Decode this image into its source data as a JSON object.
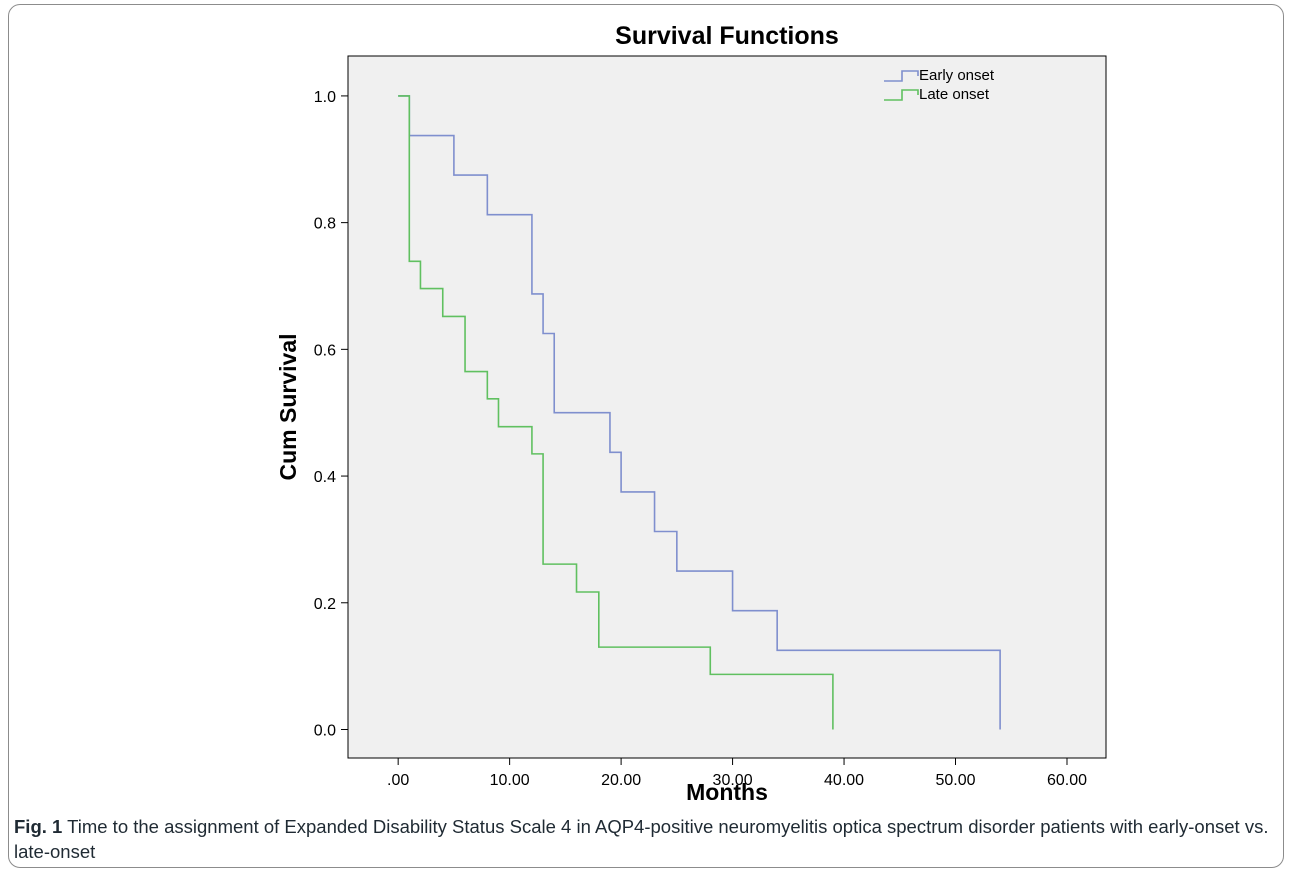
{
  "chart_data": {
    "type": "line",
    "title": "Survival Functions",
    "xlabel": "Months",
    "ylabel": "Cum Survival",
    "xlim": [
      -4.5,
      63.5
    ],
    "ylim": [
      -0.045,
      1.063
    ],
    "x_ticks": [
      0,
      10,
      20,
      30,
      40,
      50,
      60
    ],
    "x_tick_labels": [
      ".00",
      "10.00",
      "20.00",
      "30.00",
      "40.00",
      "50.00",
      "60.00"
    ],
    "y_ticks": [
      0,
      0.2,
      0.4,
      0.6,
      0.8,
      1.0
    ],
    "y_tick_labels": [
      "0.0",
      "0.2",
      "0.4",
      "0.6",
      "0.8",
      "1.0"
    ],
    "step": true,
    "legend_position": "top-right",
    "grid": false,
    "series": [
      {
        "name": "Early onset",
        "color": "#7f8fce",
        "x": [
          0,
          1,
          5,
          8,
          12,
          13,
          14,
          19,
          20,
          23,
          25,
          30,
          34,
          54
        ],
        "y": [
          1.0,
          0.9375,
          0.875,
          0.8125,
          0.6875,
          0.625,
          0.5,
          0.4375,
          0.375,
          0.3125,
          0.25,
          0.1875,
          0.125,
          0.0625
        ],
        "end": [
          54,
          0.0
        ]
      },
      {
        "name": "Late onset",
        "color": "#60c060",
        "x": [
          0,
          1,
          2,
          4,
          6,
          8,
          9,
          12,
          13,
          16,
          18,
          28,
          39
        ],
        "y": [
          1.0,
          0.739,
          0.696,
          0.652,
          0.565,
          0.522,
          0.478,
          0.435,
          0.261,
          0.217,
          0.13,
          0.087,
          0.043
        ],
        "end": [
          39,
          0.0
        ]
      }
    ]
  },
  "caption": {
    "label": "Fig. 1",
    "text": " Time to the assignment of Expanded Disability Status Scale 4 in AQP4-positive neuromyelitis optica spectrum disorder patients with early-onset vs. late-onset"
  },
  "colors": {
    "plot_background": "#f0f0f0",
    "axis": "#000000"
  }
}
